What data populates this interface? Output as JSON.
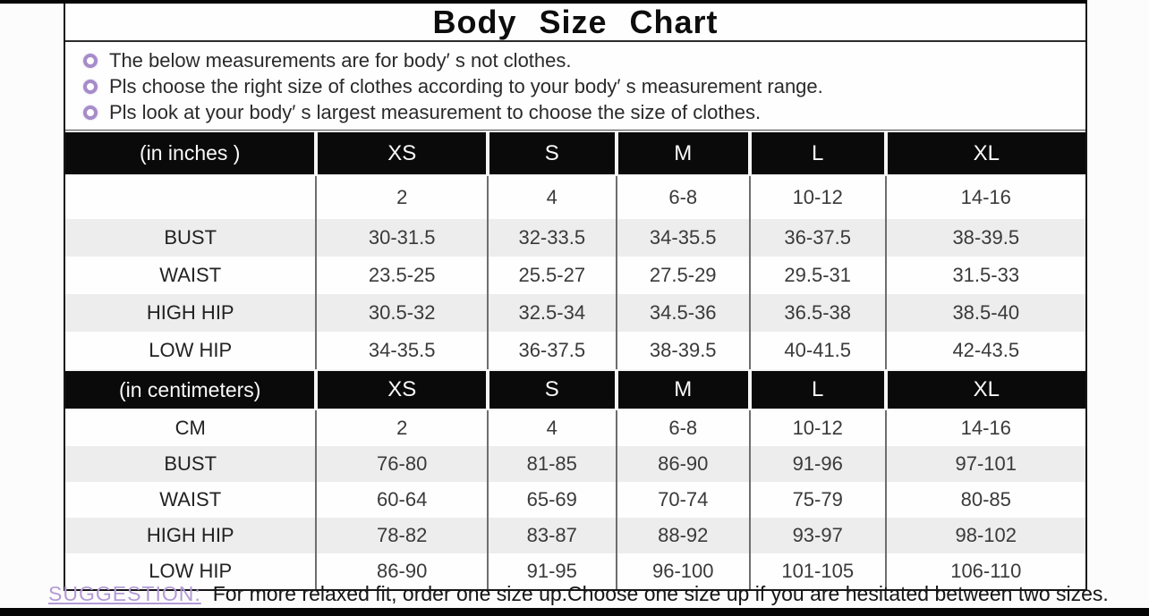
{
  "page_title": "Body Size Chart",
  "notes": {
    "items": [
      "The below measurements are for  body′ s not clothes.",
      "Pls choose the right size of clothes according to your body′ s  measurement range.",
      "Pls look  at your body′ s  largest measurement to choose the size of clothes."
    ]
  },
  "suggestion": {
    "label": "SUGGESTION:",
    "text": "For more relaxed fit, order one size up.Choose one size up if you are hesitated between two sizes."
  },
  "colors": {
    "accent_purple": "#b49bd6",
    "bullet_purple": "#a68cc9",
    "header_bg": "#0a0a0a",
    "header_text": "#fafafa",
    "row_alt": "#ededed",
    "border_black": "#161616"
  },
  "chart_data": {
    "type": "table",
    "title": "Body Size Chart",
    "tables": [
      {
        "unit_label": "(in  inches )",
        "size_headers": [
          "XS",
          "S",
          "M",
          "L",
          "XL"
        ],
        "rows": [
          {
            "label": "",
            "values": [
              "2",
              "4",
              "6-8",
              "10-12",
              "14-16"
            ]
          },
          {
            "label": "BUST",
            "values": [
              "30-31.5",
              "32-33.5",
              "34-35.5",
              "36-37.5",
              "38-39.5"
            ]
          },
          {
            "label": "WAIST",
            "values": [
              "23.5-25",
              "25.5-27",
              "27.5-29",
              "29.5-31",
              "31.5-33"
            ]
          },
          {
            "label": "HIGH HIP",
            "values": [
              "30.5-32",
              "32.5-34",
              "34.5-36",
              "36.5-38",
              "38.5-40"
            ]
          },
          {
            "label": "LOW HIP",
            "values": [
              "34-35.5",
              "36-37.5",
              "38-39.5",
              "40-41.5",
              "42-43.5"
            ]
          }
        ]
      },
      {
        "unit_label": "(in centimeters)",
        "size_headers": [
          "XS",
          "S",
          "M",
          "L",
          "XL"
        ],
        "rows": [
          {
            "label": "CM",
            "values": [
              "2",
              "4",
              "6-8",
              "10-12",
              "14-16"
            ]
          },
          {
            "label": "BUST",
            "values": [
              "76-80",
              "81-85",
              "86-90",
              "91-96",
              "97-101"
            ]
          },
          {
            "label": "WAIST",
            "values": [
              "60-64",
              "65-69",
              "70-74",
              "75-79",
              "80-85"
            ]
          },
          {
            "label": "HIGH HIP",
            "values": [
              "78-82",
              "83-87",
              "88-92",
              "93-97",
              "98-102"
            ]
          },
          {
            "label": "LOW HIP",
            "values": [
              "86-90",
              "91-95",
              "96-100",
              "101-105",
              "106-110"
            ]
          }
        ]
      }
    ]
  }
}
